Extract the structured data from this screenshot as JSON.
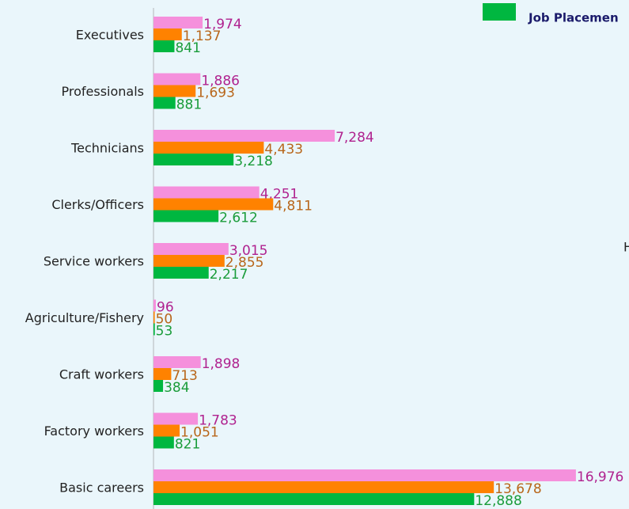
{
  "chart_data": {
    "type": "bar",
    "orientation": "horizontal",
    "categories": [
      "Executives",
      "Professionals",
      "Technicians",
      "Clerks/Officers",
      "Service workers",
      "Agriculture/Fishery",
      "Craft workers",
      "Factory workers",
      "Basic careers"
    ],
    "series": [
      {
        "color": "#f590dc",
        "label_color": "#b0228f",
        "values": [
          1974,
          1886,
          7284,
          4251,
          3015,
          96,
          1898,
          1783,
          16976
        ],
        "value_labels": [
          "1,974",
          "1,886",
          "7,284",
          "4,251",
          "3,015",
          "96",
          "1,898",
          "1,783",
          "16,976"
        ]
      },
      {
        "color": "#ff8200",
        "label_color": "#b8661a",
        "values": [
          1137,
          1693,
          4433,
          4811,
          2855,
          50,
          713,
          1051,
          13678
        ],
        "value_labels": [
          "1,137",
          "1,693",
          "4,433",
          "4,811",
          "2,855",
          "50",
          "713",
          "1,051",
          "13,678"
        ]
      },
      {
        "name": "Job Placemen",
        "color": "#00b740",
        "label_color": "#1a9c3a",
        "values": [
          841,
          881,
          3218,
          2612,
          2217,
          53,
          384,
          821,
          12888
        ],
        "value_labels": [
          "841",
          "881",
          "3,218",
          "2,612",
          "2,217",
          "53",
          "384",
          "821",
          "12,888"
        ]
      }
    ],
    "xlim": [
      0,
      20000
    ],
    "annotations": [
      "H"
    ]
  }
}
